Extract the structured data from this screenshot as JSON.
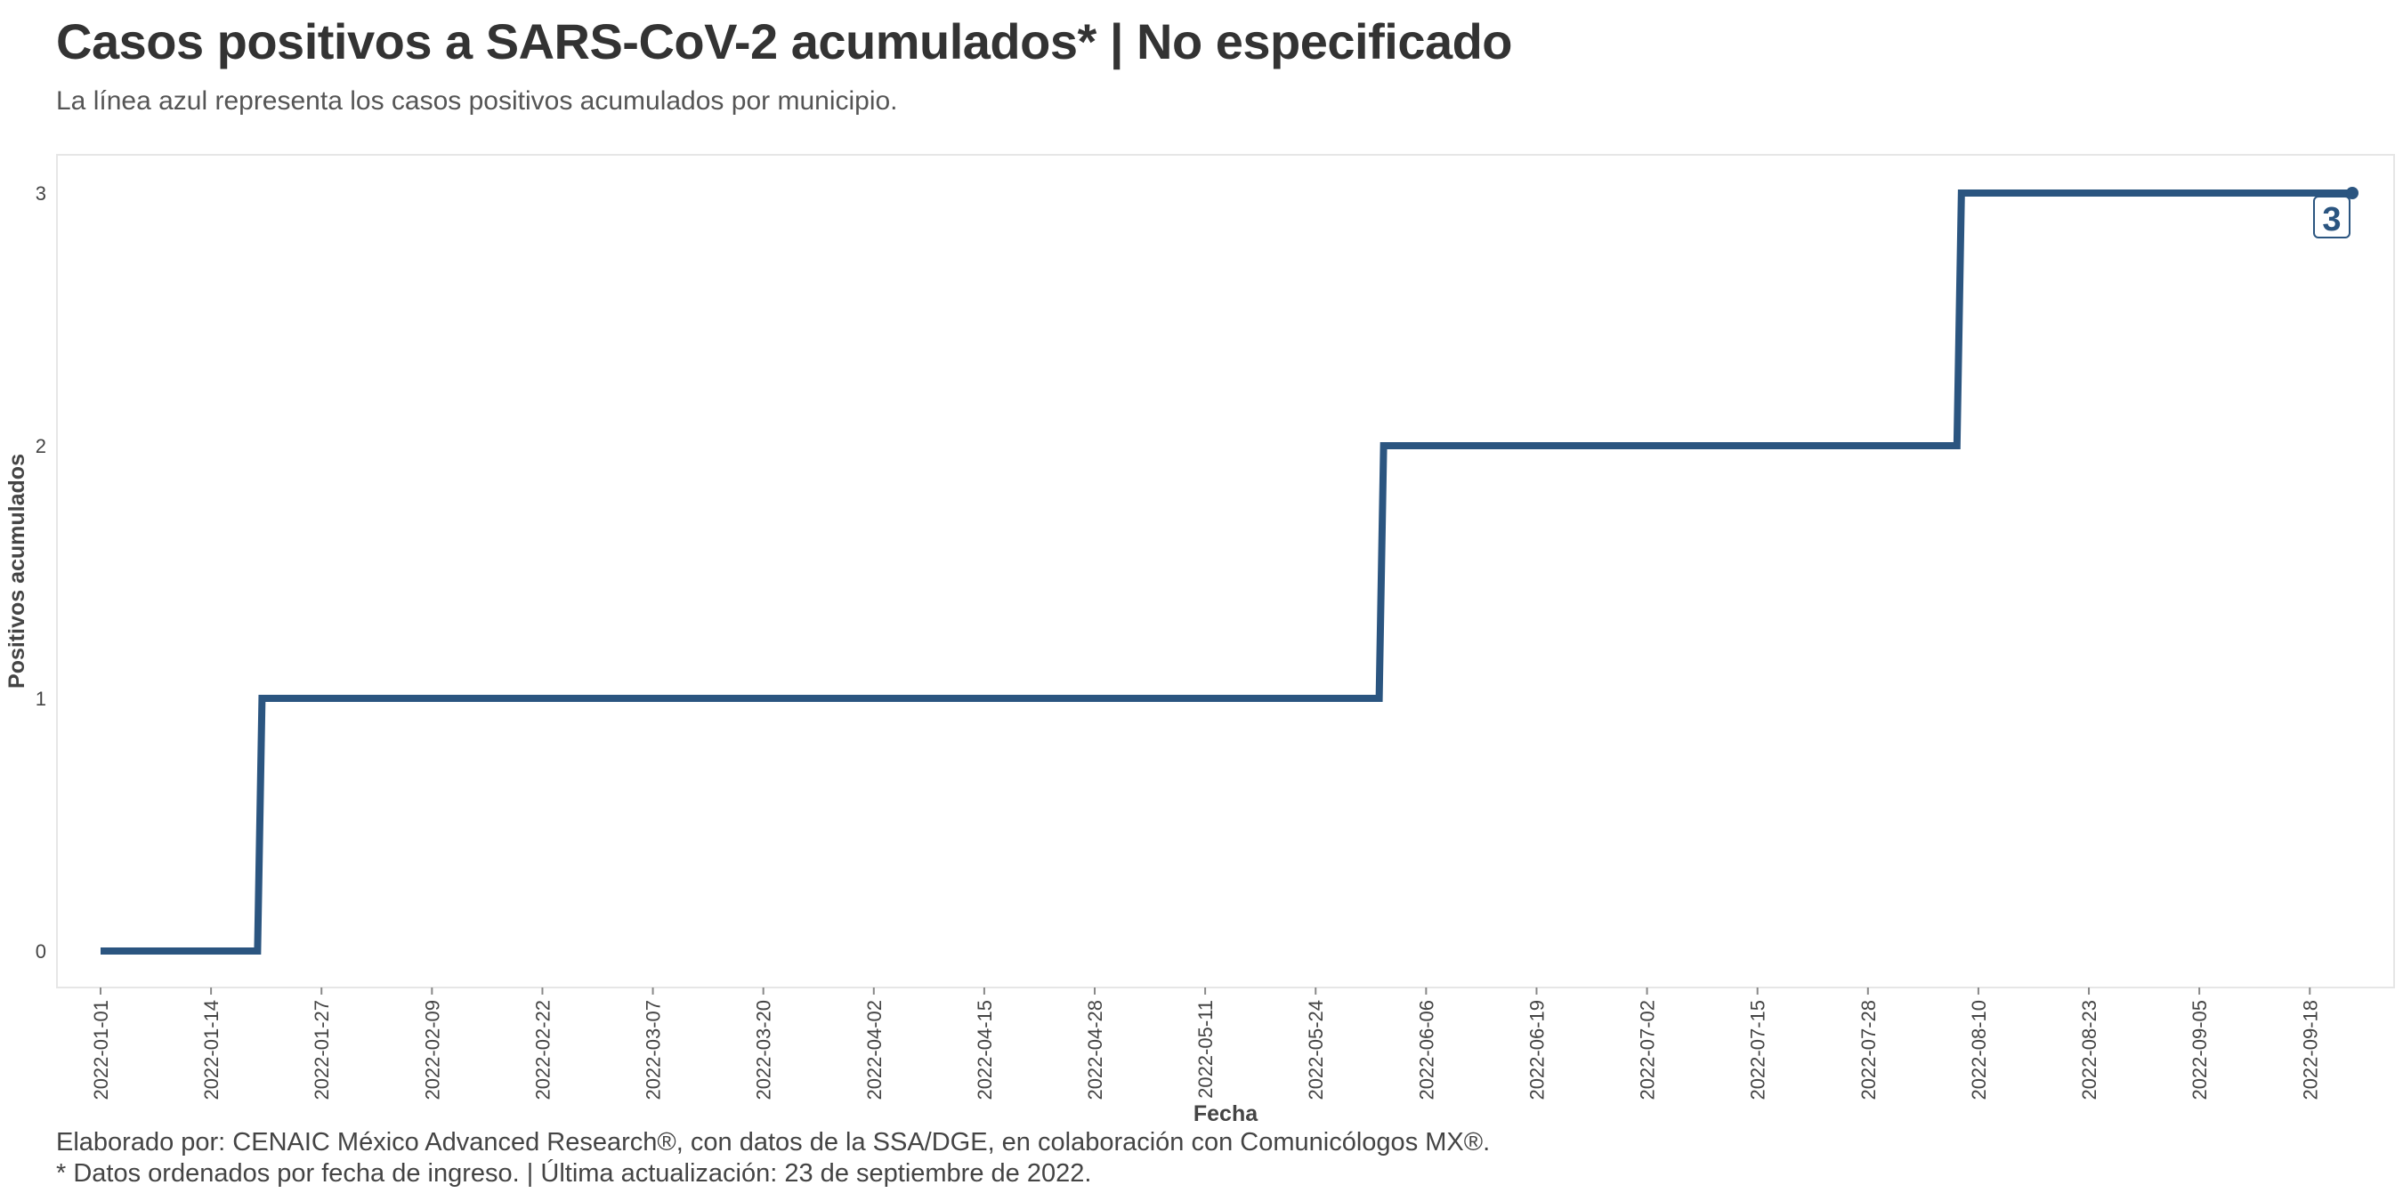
{
  "title": "Casos positivos a SARS-CoV-2 acumulados* | No especificado",
  "subtitle": "La línea azul representa los casos positivos acumulados por municipio.",
  "caption_line1": "Elaborado por: CENAIC México Advanced Research®, con datos de la SSA/DGE, en colaboración con Comunicólogos MX®.",
  "caption_line2": "* Datos ordenados por fecha de ingreso. | Última actualización: 23 de septiembre de 2022.",
  "colors": {
    "line": "#2b5580",
    "panel_border": "#e6e6e6",
    "text": "#333333"
  },
  "chart_data": {
    "type": "line",
    "step": "hv",
    "xlabel": "Fecha",
    "ylabel": "Positivos acumulados",
    "x_tick_labels": [
      "2022-01-01",
      "2022-01-14",
      "2022-01-27",
      "2022-02-09",
      "2022-02-22",
      "2022-03-07",
      "2022-03-20",
      "2022-04-02",
      "2022-04-15",
      "2022-04-28",
      "2022-05-11",
      "2022-05-24",
      "2022-06-06",
      "2022-06-19",
      "2022-07-02",
      "2022-07-15",
      "2022-07-28",
      "2022-08-10",
      "2022-08-23",
      "2022-09-05",
      "2022-09-18"
    ],
    "y_ticks": [
      0,
      1,
      2,
      3
    ],
    "xlim": [
      "2022-01-01",
      "2022-09-23"
    ],
    "ylim": [
      0,
      3
    ],
    "grid": false,
    "series": [
      {
        "x": [
          "2022-01-01",
          "2022-01-20",
          "2022-06-01",
          "2022-08-08",
          "2022-09-23"
        ],
        "y": [
          0,
          1,
          2,
          3,
          3
        ]
      }
    ],
    "end_label": "3"
  }
}
